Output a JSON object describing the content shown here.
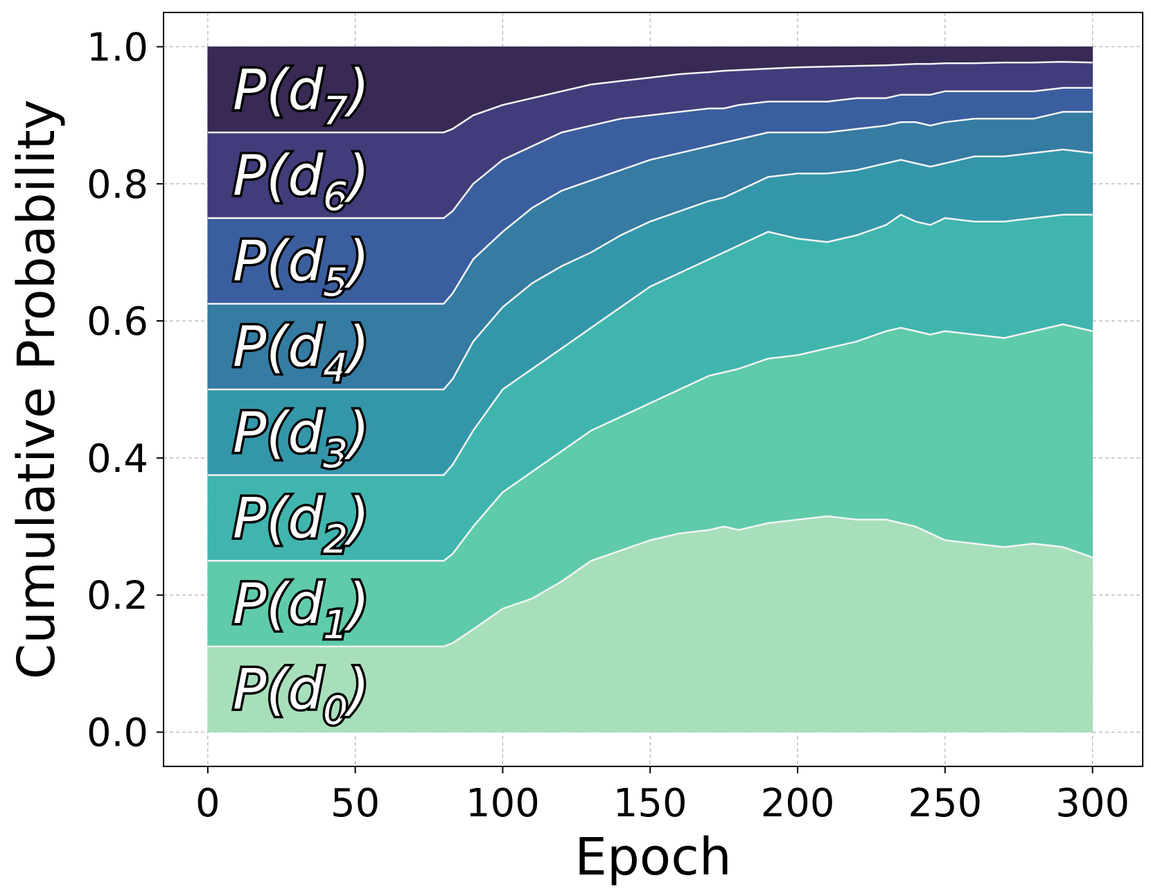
{
  "chart_data": {
    "type": "area",
    "stacked": true,
    "title": "",
    "xlabel": "Epoch",
    "ylabel": "Cumulative Probability",
    "xlim": [
      -15,
      317
    ],
    "ylim": [
      -0.05,
      1.05
    ],
    "xticks": [
      "0",
      "50",
      "100",
      "150",
      "200",
      "250",
      "300"
    ],
    "yticks": [
      "0.0",
      "0.2",
      "0.4",
      "0.6",
      "0.8",
      "1.0"
    ],
    "grid": true,
    "x": [
      0,
      80,
      83,
      90,
      100,
      110,
      120,
      130,
      140,
      150,
      160,
      170,
      175,
      180,
      190,
      200,
      210,
      220,
      230,
      235,
      240,
      245,
      250,
      260,
      270,
      280,
      290,
      300
    ],
    "boundaries": [
      {
        "name": "P(d0) upper",
        "values": [
          0.125,
          0.125,
          0.13,
          0.15,
          0.18,
          0.195,
          0.22,
          0.25,
          0.265,
          0.28,
          0.29,
          0.295,
          0.3,
          0.295,
          0.305,
          0.31,
          0.315,
          0.31,
          0.31,
          0.305,
          0.3,
          0.29,
          0.28,
          0.275,
          0.27,
          0.275,
          0.27,
          0.255
        ]
      },
      {
        "name": "P(d1) upper",
        "values": [
          0.25,
          0.25,
          0.26,
          0.3,
          0.35,
          0.38,
          0.41,
          0.44,
          0.46,
          0.48,
          0.5,
          0.52,
          0.525,
          0.53,
          0.545,
          0.55,
          0.56,
          0.57,
          0.585,
          0.59,
          0.585,
          0.58,
          0.585,
          0.58,
          0.575,
          0.585,
          0.595,
          0.585
        ]
      },
      {
        "name": "P(d2) upper",
        "values": [
          0.375,
          0.375,
          0.39,
          0.44,
          0.5,
          0.53,
          0.56,
          0.59,
          0.62,
          0.65,
          0.67,
          0.69,
          0.7,
          0.71,
          0.73,
          0.72,
          0.715,
          0.725,
          0.74,
          0.755,
          0.745,
          0.74,
          0.75,
          0.745,
          0.745,
          0.75,
          0.755,
          0.755
        ]
      },
      {
        "name": "P(d3) upper",
        "values": [
          0.5,
          0.5,
          0.515,
          0.57,
          0.62,
          0.655,
          0.68,
          0.7,
          0.725,
          0.745,
          0.76,
          0.775,
          0.78,
          0.79,
          0.81,
          0.815,
          0.815,
          0.82,
          0.83,
          0.835,
          0.83,
          0.825,
          0.83,
          0.84,
          0.84,
          0.845,
          0.85,
          0.845
        ]
      },
      {
        "name": "P(d4) upper",
        "values": [
          0.625,
          0.625,
          0.64,
          0.69,
          0.73,
          0.765,
          0.79,
          0.805,
          0.82,
          0.835,
          0.845,
          0.855,
          0.86,
          0.865,
          0.875,
          0.875,
          0.875,
          0.88,
          0.885,
          0.89,
          0.89,
          0.885,
          0.89,
          0.895,
          0.895,
          0.895,
          0.905,
          0.905
        ]
      },
      {
        "name": "P(d5) upper",
        "values": [
          0.75,
          0.75,
          0.76,
          0.8,
          0.835,
          0.855,
          0.875,
          0.885,
          0.895,
          0.9,
          0.905,
          0.91,
          0.91,
          0.915,
          0.92,
          0.92,
          0.92,
          0.925,
          0.925,
          0.93,
          0.93,
          0.93,
          0.935,
          0.935,
          0.935,
          0.935,
          0.94,
          0.94
        ]
      },
      {
        "name": "P(d6) upper",
        "values": [
          0.875,
          0.875,
          0.88,
          0.9,
          0.915,
          0.925,
          0.935,
          0.945,
          0.95,
          0.955,
          0.96,
          0.963,
          0.965,
          0.966,
          0.968,
          0.97,
          0.971,
          0.972,
          0.973,
          0.974,
          0.975,
          0.975,
          0.976,
          0.976,
          0.977,
          0.977,
          0.978,
          0.977
        ]
      },
      {
        "name": "P(d7) upper",
        "values": [
          1,
          1,
          1,
          1,
          1,
          1,
          1,
          1,
          1,
          1,
          1,
          1,
          1,
          1,
          1,
          1,
          1,
          1,
          1,
          1,
          1,
          1,
          1,
          1,
          1,
          1,
          1,
          1
        ]
      }
    ],
    "series": [
      {
        "name": "P(d0)",
        "label": "P(d",
        "subscript": "0",
        "color": "#a8dfbb"
      },
      {
        "name": "P(d1)",
        "label": "P(d",
        "subscript": "1",
        "color": "#5fcbaa"
      },
      {
        "name": "P(d2)",
        "label": "P(d",
        "subscript": "2",
        "color": "#40b5ae"
      },
      {
        "name": "P(d3)",
        "label": "P(d",
        "subscript": "3",
        "color": "#3497a9"
      },
      {
        "name": "P(d4)",
        "label": "P(d",
        "subscript": "4",
        "color": "#357ba2"
      },
      {
        "name": "P(d5)",
        "label": "P(d",
        "subscript": "5",
        "color": "#3b5e9e"
      },
      {
        "name": "P(d6)",
        "label": "P(d",
        "subscript": "6",
        "color": "#413d7b"
      },
      {
        "name": "P(d7)",
        "label": "P(d",
        "subscript": "7",
        "color": "#382a54"
      }
    ],
    "label_close": ")"
  }
}
